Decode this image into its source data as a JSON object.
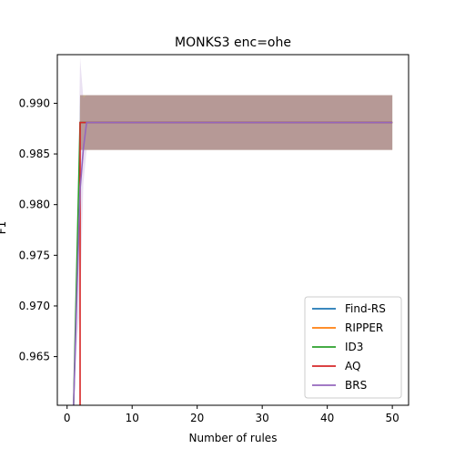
{
  "chart_data": {
    "type": "line",
    "title": "MONKS3 enc=ohe",
    "xlabel": "Number of rules",
    "ylabel": "F1",
    "xlim": [
      -1.5,
      52.5
    ],
    "ylim": [
      0.9602,
      0.9948
    ],
    "x_ticks": [
      0,
      10,
      20,
      30,
      40,
      50
    ],
    "x_tick_labels": [
      "0",
      "10",
      "20",
      "30",
      "40",
      "50"
    ],
    "y_ticks": [
      0.965,
      0.97,
      0.975,
      0.98,
      0.985,
      0.99
    ],
    "y_tick_labels": [
      "0.965",
      "0.970",
      "0.975",
      "0.980",
      "0.985",
      "0.990"
    ],
    "grid": false,
    "legend_position": "lower-right",
    "series": [
      {
        "name": "Find-RS",
        "color": "#1f77b4",
        "x": [
          2,
          50
        ],
        "y": [
          0.9881,
          0.9881
        ],
        "band_lower": [
          0.9854,
          0.9854
        ],
        "band_upper": [
          0.9908,
          0.9908
        ]
      },
      {
        "name": "RIPPER",
        "color": "#ff7f0e",
        "x": [
          2,
          50
        ],
        "y": [
          0.9881,
          0.9881
        ],
        "band_lower": [
          0.9854,
          0.9854
        ],
        "band_upper": [
          0.9908,
          0.9908
        ]
      },
      {
        "name": "ID3",
        "color": "#2ca02c",
        "x": [
          1,
          2,
          50
        ],
        "y": [
          0.9602,
          0.9881,
          0.9881
        ],
        "band_lower": [
          0.9602,
          0.9854,
          0.9854
        ],
        "band_upper": [
          0.9602,
          0.9908,
          0.9908
        ]
      },
      {
        "name": "AQ",
        "color": "#d62728",
        "x": [
          2,
          2,
          50
        ],
        "y": [
          0.9602,
          0.9881,
          0.9881
        ],
        "band_lower": [
          0.9602,
          0.9854,
          0.9854
        ],
        "band_upper": [
          0.9602,
          0.9908,
          0.9908
        ]
      },
      {
        "name": "BRS",
        "color": "#9467bd",
        "x": [
          1,
          1.5,
          2,
          2.5,
          3,
          50
        ],
        "y": [
          0.9602,
          0.971,
          0.9815,
          0.9855,
          0.9881,
          0.9881
        ],
        "band_lower": [
          0.9602,
          0.966,
          0.97,
          0.982,
          0.9854,
          0.9854
        ],
        "band_upper": [
          0.9602,
          0.975,
          0.9945,
          0.9905,
          0.9908,
          0.9908
        ]
      }
    ]
  }
}
